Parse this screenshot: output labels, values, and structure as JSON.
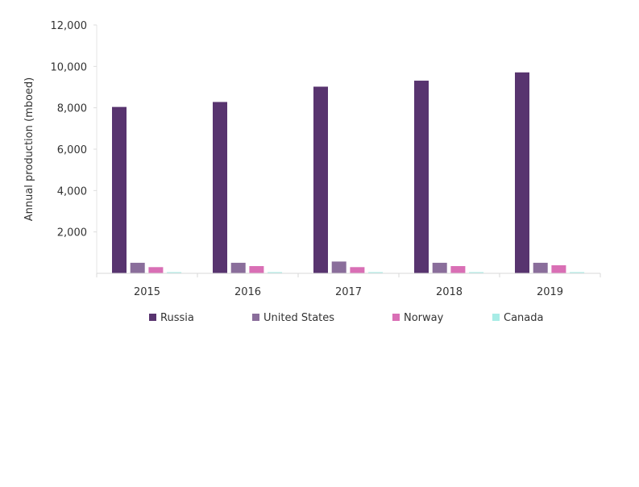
{
  "chart_data": {
    "type": "bar",
    "title": "",
    "xlabel": "",
    "ylabel": "Annual production (mboed)",
    "ylim": [
      0,
      12000
    ],
    "yticks": [
      "2,000",
      "4,000",
      "6,000",
      "8,000",
      "10,000",
      "12,000"
    ],
    "ytick_values": [
      2000,
      4000,
      6000,
      8000,
      10000,
      12000
    ],
    "categories": [
      "2015",
      "2016",
      "2017",
      "2018",
      "2019"
    ],
    "series": [
      {
        "name": "Russia",
        "color": "#58346f",
        "values": [
          8040,
          8280,
          9020,
          9310,
          9710
        ]
      },
      {
        "name": "United States",
        "color": "#8a6e9b",
        "values": [
          510,
          510,
          570,
          510,
          510
        ]
      },
      {
        "name": "Norway",
        "color": "#d96fb5",
        "values": [
          300,
          350,
          300,
          350,
          390
        ]
      },
      {
        "name": "Canada",
        "color": "#a8ece6",
        "values": [
          20,
          20,
          20,
          20,
          20
        ]
      }
    ],
    "legend": "bottom",
    "grid": false
  }
}
